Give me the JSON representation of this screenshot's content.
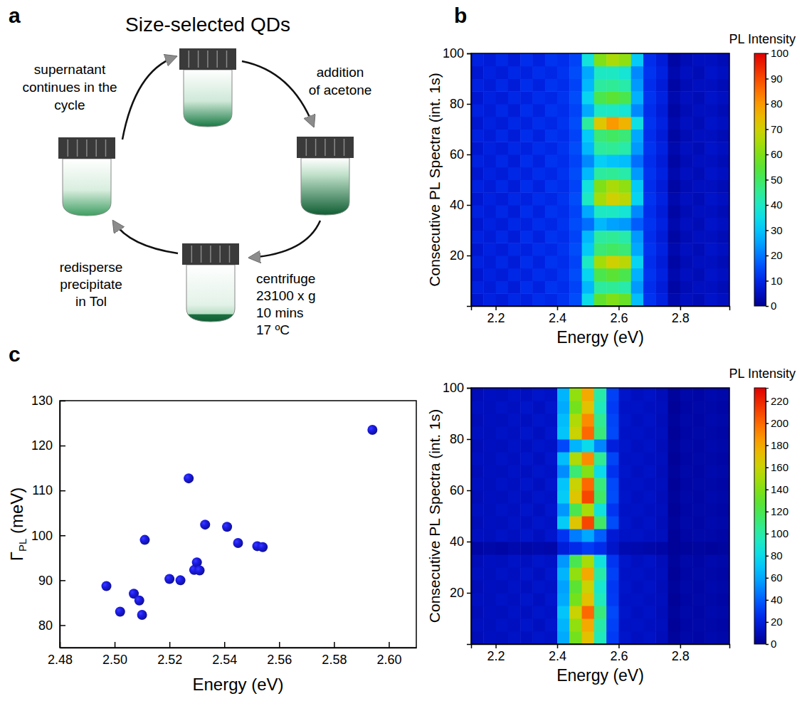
{
  "diagram": {
    "panel": "a",
    "title": "Size-selected QDs",
    "steps": [
      {
        "lines": [
          "addition",
          "of acetone"
        ]
      },
      {
        "lines": [
          "centrifuge",
          "23100 x g",
          "10 mins",
          "17 ºC"
        ]
      },
      {
        "lines": [
          "redisperse",
          "precipitate",
          "in Tol"
        ]
      },
      {
        "lines": [
          "supernatant",
          "continues in the",
          "cycle"
        ]
      }
    ]
  },
  "chart_data": [
    {
      "type": "heatmap",
      "panel": "b",
      "x_label": "Energy (eV)",
      "y_label": "Consecutive PL Spectra (int. 1s)",
      "x_bins": [
        2.12,
        2.16,
        2.2,
        2.24,
        2.28,
        2.32,
        2.36,
        2.4,
        2.44,
        2.48,
        2.52,
        2.56,
        2.6,
        2.64,
        2.68,
        2.72,
        2.76,
        2.8,
        2.84,
        2.88,
        2.92,
        2.96
      ],
      "y_bins": [
        0,
        5,
        10,
        15,
        20,
        25,
        30,
        35,
        40,
        45,
        50,
        55,
        60,
        65,
        70,
        75,
        80,
        85,
        90,
        95,
        100
      ],
      "values": [
        [
          7,
          9,
          8,
          10,
          9,
          11,
          10,
          12,
          15,
          35,
          56,
          60,
          57,
          29,
          12,
          9,
          3,
          5,
          4,
          6,
          5
        ],
        [
          9,
          8,
          10,
          8,
          11,
          9,
          12,
          11,
          14,
          28,
          44,
          45,
          43,
          24,
          11,
          8,
          2,
          4,
          5,
          5,
          4
        ],
        [
          7,
          9,
          8,
          10,
          9,
          11,
          10,
          12,
          15,
          33,
          52,
          55,
          52,
          27,
          12,
          9,
          3,
          5,
          4,
          6,
          5
        ],
        [
          9,
          8,
          10,
          8,
          11,
          9,
          12,
          11,
          14,
          40,
          64,
          70,
          67,
          33,
          11,
          8,
          2,
          4,
          5,
          5,
          4
        ],
        [
          7,
          9,
          8,
          10,
          9,
          11,
          10,
          12,
          15,
          31,
          48,
          50,
          48,
          26,
          12,
          9,
          3,
          5,
          4,
          6,
          5
        ],
        [
          9,
          8,
          10,
          8,
          11,
          9,
          12,
          11,
          14,
          28,
          44,
          45,
          43,
          24,
          11,
          8,
          2,
          4,
          5,
          5,
          4
        ],
        [
          7,
          9,
          8,
          10,
          9,
          11,
          10,
          12,
          15,
          19,
          28,
          25,
          24,
          17,
          12,
          9,
          3,
          5,
          4,
          6,
          5
        ],
        [
          9,
          8,
          10,
          8,
          11,
          9,
          12,
          11,
          14,
          26,
          40,
          40,
          38,
          22,
          11,
          8,
          2,
          4,
          5,
          5,
          4
        ],
        [
          7,
          9,
          8,
          10,
          9,
          11,
          10,
          12,
          15,
          40,
          64,
          70,
          67,
          33,
          12,
          9,
          3,
          5,
          4,
          6,
          5
        ],
        [
          9,
          8,
          10,
          8,
          11,
          9,
          12,
          11,
          14,
          37,
          60,
          65,
          62,
          31,
          11,
          8,
          2,
          4,
          5,
          5,
          4
        ],
        [
          7,
          9,
          8,
          10,
          9,
          11,
          10,
          12,
          15,
          28,
          44,
          45,
          43,
          24,
          12,
          9,
          3,
          5,
          4,
          6,
          5
        ],
        [
          9,
          8,
          10,
          8,
          11,
          9,
          12,
          11,
          14,
          22,
          32,
          30,
          29,
          19,
          11,
          8,
          2,
          4,
          5,
          5,
          4
        ],
        [
          7,
          9,
          8,
          10,
          9,
          11,
          10,
          12,
          15,
          28,
          44,
          45,
          43,
          24,
          12,
          9,
          3,
          5,
          4,
          6,
          5
        ],
        [
          9,
          8,
          10,
          8,
          11,
          9,
          12,
          11,
          14,
          31,
          48,
          50,
          48,
          26,
          11,
          8,
          2,
          4,
          5,
          5,
          4
        ],
        [
          7,
          9,
          8,
          10,
          9,
          11,
          10,
          12,
          15,
          44,
          72,
          80,
          76,
          36,
          12,
          9,
          3,
          5,
          4,
          6,
          5
        ],
        [
          9,
          8,
          10,
          8,
          11,
          9,
          12,
          11,
          14,
          26,
          40,
          40,
          38,
          22,
          11,
          8,
          2,
          4,
          5,
          5,
          4
        ],
        [
          7,
          9,
          8,
          10,
          9,
          11,
          10,
          12,
          15,
          33,
          52,
          55,
          52,
          27,
          12,
          9,
          3,
          5,
          4,
          6,
          5
        ],
        [
          9,
          8,
          10,
          8,
          11,
          9,
          12,
          11,
          14,
          28,
          44,
          45,
          43,
          24,
          11,
          8,
          2,
          4,
          5,
          5,
          4
        ],
        [
          7,
          9,
          8,
          10,
          9,
          11,
          10,
          12,
          15,
          26,
          40,
          40,
          38,
          22,
          12,
          9,
          3,
          5,
          4,
          6,
          5
        ],
        [
          9,
          8,
          10,
          8,
          11,
          9,
          12,
          11,
          14,
          37,
          60,
          65,
          62,
          31,
          11,
          8,
          2,
          4,
          5,
          5,
          4
        ]
      ],
      "xlim": [
        2.12,
        2.96
      ],
      "xticks": [
        2.2,
        2.4,
        2.6,
        2.8
      ],
      "ylim": [
        0,
        100
      ],
      "yticks": [
        20,
        40,
        60,
        80,
        100
      ],
      "colorbar_label": "PL Intensity",
      "colorbar_range": [
        0,
        100
      ],
      "colorbar_ticks": [
        0,
        10,
        20,
        30,
        40,
        50,
        60,
        70,
        80,
        90,
        100
      ]
    },
    {
      "type": "heatmap",
      "x_label": "Energy (eV)",
      "y_label": "Consecutive PL Spectra (int. 1s)",
      "x_bins": [
        2.12,
        2.16,
        2.2,
        2.24,
        2.28,
        2.32,
        2.36,
        2.4,
        2.44,
        2.48,
        2.52,
        2.56,
        2.6,
        2.64,
        2.68,
        2.72,
        2.76,
        2.8,
        2.84,
        2.88,
        2.92,
        2.96
      ],
      "y_bins": [
        0,
        5,
        10,
        15,
        20,
        25,
        30,
        35,
        40,
        45,
        50,
        55,
        60,
        65,
        70,
        75,
        80,
        85,
        90,
        95,
        100
      ],
      "values": [
        [
          10,
          12,
          11,
          13,
          12,
          14,
          13,
          61,
          136,
          170,
          95,
          30,
          14,
          12,
          13,
          10,
          3,
          6,
          5,
          7,
          6
        ],
        [
          12,
          11,
          13,
          12,
          14,
          12,
          15,
          64,
          144,
          180,
          100,
          32,
          13,
          13,
          12,
          11,
          2,
          5,
          6,
          6,
          5
        ],
        [
          10,
          12,
          11,
          13,
          12,
          14,
          13,
          70,
          160,
          200,
          110,
          34,
          14,
          12,
          13,
          10,
          3,
          6,
          5,
          7,
          6
        ],
        [
          12,
          11,
          13,
          12,
          14,
          12,
          15,
          61,
          136,
          170,
          95,
          30,
          13,
          13,
          12,
          11,
          2,
          5,
          6,
          6,
          5
        ],
        [
          10,
          12,
          11,
          13,
          12,
          14,
          13,
          58,
          128,
          160,
          90,
          29,
          14,
          12,
          13,
          10,
          3,
          6,
          5,
          7,
          6
        ],
        [
          12,
          11,
          13,
          12,
          14,
          12,
          15,
          64,
          144,
          180,
          100,
          32,
          13,
          13,
          12,
          11,
          2,
          5,
          6,
          6,
          5
        ],
        [
          10,
          12,
          11,
          13,
          12,
          14,
          13,
          55,
          120,
          150,
          85,
          28,
          14,
          12,
          13,
          10,
          3,
          6,
          5,
          7,
          6
        ],
        [
          5,
          6,
          5,
          7,
          6,
          7,
          6,
          19,
          24,
          30,
          25,
          14,
          8,
          7,
          6,
          5,
          2,
          3,
          4,
          3,
          4
        ],
        [
          12,
          11,
          13,
          12,
          14,
          12,
          15,
          28,
          48,
          60,
          40,
          17,
          13,
          13,
          12,
          11,
          2,
          5,
          6,
          6,
          5
        ],
        [
          10,
          12,
          11,
          13,
          12,
          14,
          13,
          73,
          168,
          210,
          115,
          35,
          14,
          12,
          13,
          10,
          3,
          6,
          5,
          7,
          6
        ],
        [
          12,
          11,
          13,
          12,
          14,
          12,
          15,
          55,
          120,
          150,
          85,
          28,
          13,
          13,
          12,
          11,
          2,
          5,
          6,
          6,
          5
        ],
        [
          10,
          12,
          11,
          13,
          12,
          14,
          13,
          73,
          168,
          210,
          115,
          35,
          14,
          12,
          13,
          10,
          3,
          6,
          5,
          7,
          6
        ],
        [
          12,
          11,
          13,
          12,
          14,
          12,
          15,
          70,
          160,
          200,
          110,
          34,
          13,
          13,
          12,
          11,
          2,
          5,
          6,
          6,
          5
        ],
        [
          10,
          12,
          11,
          13,
          12,
          14,
          13,
          52,
          112,
          140,
          80,
          27,
          14,
          12,
          13,
          10,
          3,
          6,
          5,
          7,
          6
        ],
        [
          12,
          11,
          13,
          12,
          14,
          12,
          15,
          67,
          152,
          190,
          105,
          33,
          13,
          13,
          12,
          11,
          2,
          5,
          6,
          6,
          5
        ],
        [
          10,
          12,
          11,
          13,
          12,
          14,
          13,
          34,
          64,
          80,
          50,
          20,
          14,
          12,
          13,
          10,
          3,
          6,
          5,
          7,
          6
        ],
        [
          12,
          11,
          13,
          12,
          14,
          12,
          15,
          70,
          160,
          200,
          110,
          34,
          13,
          13,
          12,
          11,
          2,
          5,
          6,
          6,
          5
        ],
        [
          10,
          12,
          11,
          13,
          12,
          14,
          13,
          67,
          152,
          190,
          105,
          33,
          14,
          12,
          13,
          10,
          3,
          6,
          5,
          7,
          6
        ],
        [
          12,
          11,
          13,
          12,
          14,
          12,
          15,
          61,
          136,
          170,
          95,
          30,
          13,
          13,
          12,
          11,
          2,
          5,
          6,
          6,
          5
        ],
        [
          10,
          12,
          11,
          13,
          12,
          14,
          13,
          64,
          144,
          180,
          100,
          32,
          14,
          12,
          13,
          10,
          3,
          6,
          5,
          7,
          6
        ]
      ],
      "xlim": [
        2.12,
        2.96
      ],
      "xticks": [
        2.2,
        2.4,
        2.6,
        2.8
      ],
      "ylim": [
        0,
        100
      ],
      "yticks": [
        20,
        40,
        60,
        80,
        100
      ],
      "colorbar_label": "PL Intensity",
      "colorbar_range": [
        0,
        232
      ],
      "colorbar_ticks": [
        0,
        20,
        40,
        60,
        80,
        100,
        120,
        140,
        160,
        180,
        200,
        220
      ]
    },
    {
      "type": "scatter",
      "panel": "c",
      "x_label": "Energy (eV)",
      "y_label": "ΓPL (meV)",
      "x": [
        2.497,
        2.502,
        2.507,
        2.509,
        2.51,
        2.511,
        2.52,
        2.524,
        2.527,
        2.529,
        2.53,
        2.531,
        2.533,
        2.541,
        2.545,
        2.552,
        2.554,
        2.594
      ],
      "values": [
        88.7,
        83,
        87,
        85.5,
        82.3,
        99,
        90.3,
        90,
        112.7,
        92.3,
        94,
        92.2,
        102.4,
        101.9,
        98.3,
        97.6,
        97.4,
        123.5
      ],
      "color": "#1a1ae6",
      "marker": "circle",
      "xlim": [
        2.48,
        2.61
      ],
      "xticks": [
        2.48,
        {
          "value": 2.5,
          "label": "2.50"
        },
        2.52,
        2.54,
        2.56,
        2.58,
        {
          "value": 2.6,
          "label": "2.60"
        }
      ],
      "ylim": [
        75,
        130
      ],
      "yticks": [
        80,
        90,
        100,
        110,
        120,
        130
      ]
    }
  ]
}
